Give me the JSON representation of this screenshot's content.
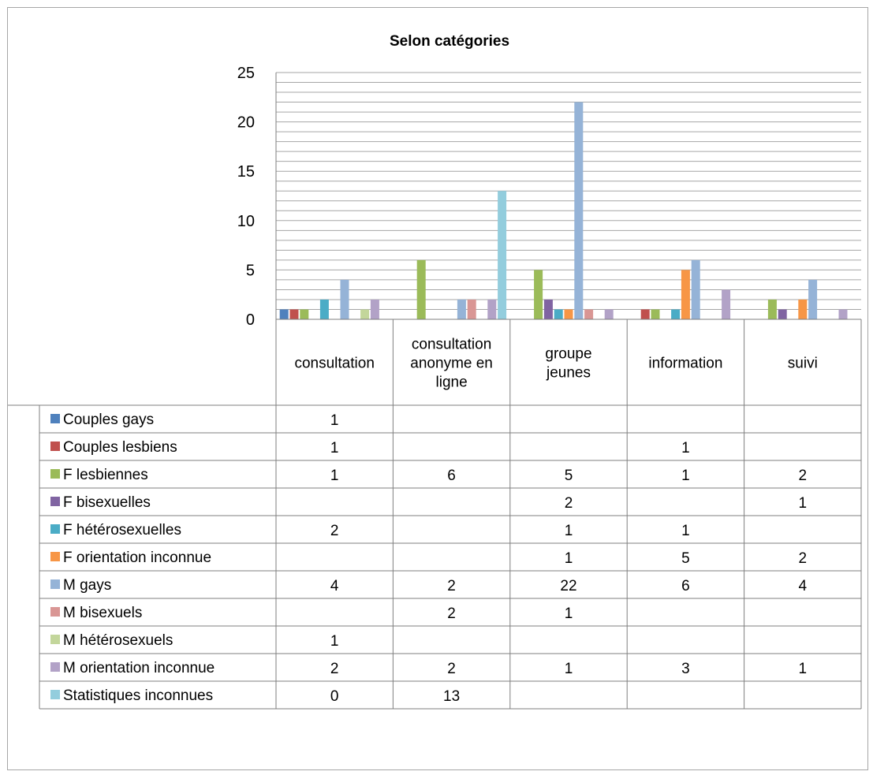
{
  "chart_data": {
    "type": "bar",
    "title": "Selon catégories",
    "categories": [
      [
        "consultation"
      ],
      [
        "consultation",
        "anonyme en",
        "ligne"
      ],
      [
        "groupe",
        "jeunes"
      ],
      [
        "information"
      ],
      [
        "suivi"
      ]
    ],
    "ylim": [
      0,
      25
    ],
    "yticks": [
      "0",
      "5",
      "10",
      "15",
      "20",
      "25"
    ],
    "ytick_values": [
      0,
      5,
      10,
      15,
      20,
      25
    ],
    "minor_grid_step": 1,
    "grid": true,
    "legend": "data-table-bottom",
    "series": [
      {
        "name": "Couples gays",
        "color": "#4f81bd",
        "values": [
          1,
          null,
          null,
          null,
          null
        ]
      },
      {
        "name": "Couples lesbiens",
        "color": "#c0504d",
        "values": [
          1,
          null,
          null,
          1,
          null
        ]
      },
      {
        "name": "F lesbiennes",
        "color": "#9bbb59",
        "values": [
          1,
          6,
          5,
          1,
          2
        ]
      },
      {
        "name": "F bisexuelles",
        "color": "#8064a2",
        "values": [
          null,
          null,
          2,
          null,
          1
        ]
      },
      {
        "name": "F hétérosexuelles",
        "color": "#4bacc6",
        "values": [
          2,
          null,
          1,
          1,
          null
        ]
      },
      {
        "name": "F orientation inconnue",
        "color": "#f79646",
        "values": [
          null,
          null,
          1,
          5,
          2
        ]
      },
      {
        "name": "M gays",
        "color": "#95b3d7",
        "values": [
          4,
          2,
          22,
          6,
          4
        ]
      },
      {
        "name": "M bisexuels",
        "color": "#d99694",
        "values": [
          null,
          2,
          1,
          null,
          null
        ]
      },
      {
        "name": "M hétérosexuels",
        "color": "#c3d69b",
        "values": [
          1,
          null,
          null,
          null,
          null
        ]
      },
      {
        "name": "M orientation inconnue",
        "color": "#b2a2c7",
        "values": [
          2,
          2,
          1,
          3,
          1
        ]
      },
      {
        "name": "Statistiques inconnues",
        "color": "#93cddd",
        "values": [
          0,
          13,
          null,
          null,
          null
        ]
      }
    ]
  }
}
